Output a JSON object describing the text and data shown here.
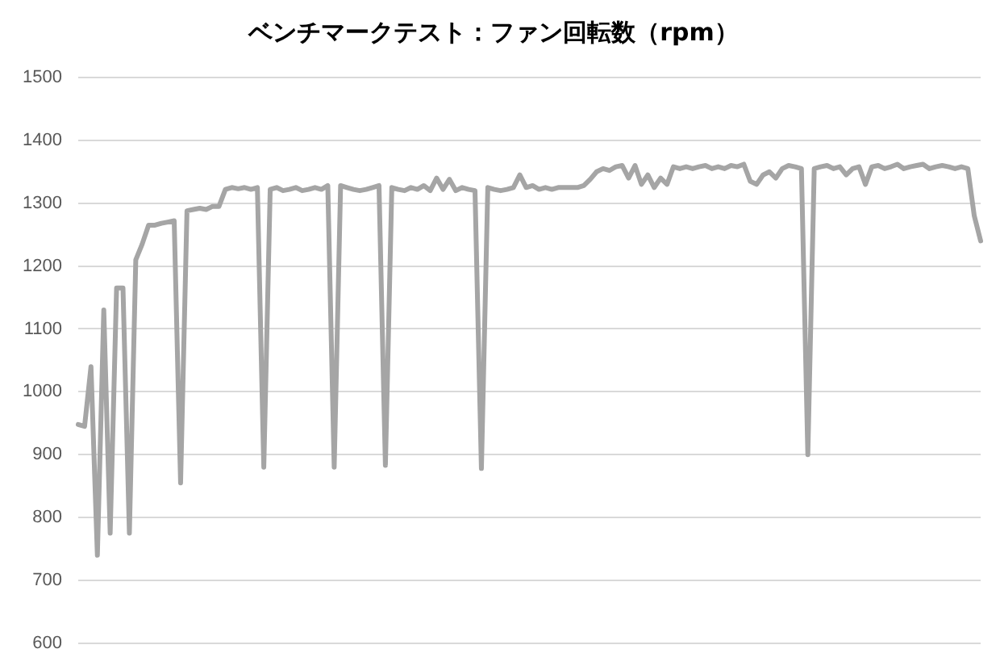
{
  "chart_data": {
    "type": "line",
    "title": "ベンチマークテスト：ファン回転数（rpm）",
    "categories": [
      null,
      null,
      null,
      null,
      null,
      null,
      null,
      null,
      null,
      null,
      null,
      null,
      null,
      null,
      null,
      null,
      null,
      null,
      null,
      null,
      null,
      null,
      null,
      null,
      null,
      null,
      null,
      null,
      null,
      null,
      null,
      null,
      null,
      null,
      null,
      null,
      null,
      null,
      null,
      null,
      null,
      null,
      null,
      null,
      null,
      null,
      null,
      null,
      null,
      null,
      null,
      null,
      null,
      null,
      null,
      null,
      null,
      null,
      null,
      null,
      null,
      null,
      null,
      null,
      null,
      null,
      null,
      null,
      null,
      null,
      null,
      null,
      null,
      null,
      null,
      null,
      null,
      null,
      null,
      null,
      null,
      null,
      null,
      null,
      null,
      null,
      null,
      null,
      null,
      null,
      null,
      null,
      null,
      null,
      null,
      null,
      null,
      null,
      null,
      null,
      null,
      null,
      null,
      null,
      null,
      null,
      null,
      null,
      null,
      null,
      null,
      null,
      null,
      null,
      null,
      null,
      null,
      null,
      null,
      null,
      null,
      null,
      null,
      null,
      null,
      null,
      null,
      null,
      null,
      null,
      null,
      null,
      null,
      null,
      null,
      null,
      null,
      null,
      null,
      null,
      null,
      null
    ],
    "series": [
      {
        "color": "#a5a5a5",
        "values": [
          948,
          945,
          1040,
          740,
          1130,
          775,
          1165,
          1165,
          775,
          1210,
          1235,
          1265,
          1265,
          1268,
          1270,
          1272,
          855,
          1288,
          1290,
          1292,
          1290,
          1295,
          1295,
          1322,
          1325,
          1323,
          1325,
          1322,
          1325,
          880,
          1322,
          1325,
          1320,
          1322,
          1325,
          1320,
          1322,
          1325,
          1322,
          1328,
          880,
          1328,
          1325,
          1322,
          1320,
          1322,
          1325,
          1328,
          883,
          1325,
          1322,
          1320,
          1325,
          1322,
          1328,
          1320,
          1340,
          1322,
          1338,
          1320,
          1325,
          1322,
          1320,
          878,
          1325,
          1322,
          1320,
          1322,
          1325,
          1345,
          1325,
          1328,
          1322,
          1325,
          1322,
          1325,
          1325,
          1325,
          1325,
          1328,
          1338,
          1350,
          1355,
          1352,
          1358,
          1360,
          1340,
          1360,
          1330,
          1345,
          1325,
          1340,
          1330,
          1358,
          1355,
          1358,
          1355,
          1358,
          1360,
          1355,
          1358,
          1355,
          1360,
          1358,
          1362,
          1335,
          1330,
          1345,
          1350,
          1340,
          1355,
          1360,
          1358,
          1355,
          900,
          1355,
          1358,
          1360,
          1355,
          1358,
          1345,
          1355,
          1358,
          1330,
          1358,
          1360,
          1355,
          1358,
          1362,
          1355,
          1358,
          1360,
          1362,
          1355,
          1358,
          1360,
          1358,
          1355,
          1358,
          1355,
          1280,
          1240
        ]
      }
    ],
    "ylim": [
      600,
      1500
    ],
    "yticks": [
      600,
      700,
      800,
      900,
      1000,
      1100,
      1200,
      1300,
      1400,
      1500
    ],
    "grid": "y",
    "tick_labels": "y",
    "marker": "none",
    "line_style": "solid"
  }
}
